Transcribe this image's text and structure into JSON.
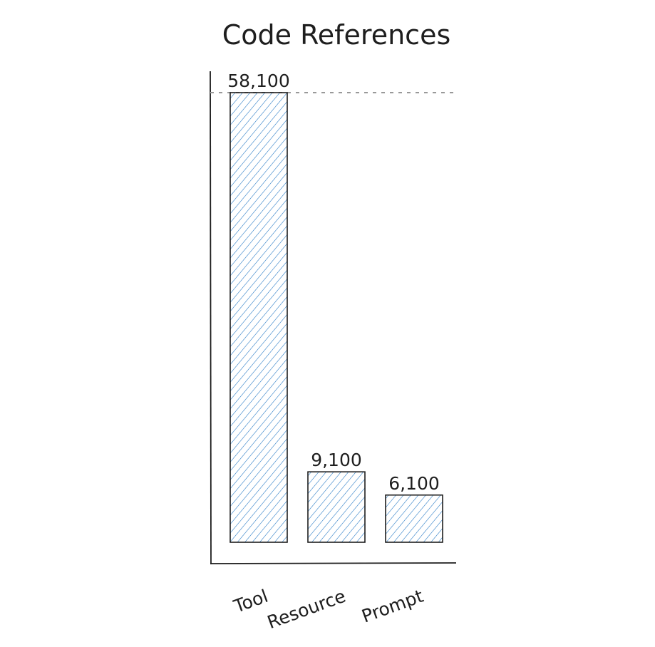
{
  "chart_data": {
    "type": "bar",
    "title": "Code References",
    "categories": [
      "Tool",
      "Resource",
      "Prompt"
    ],
    "values": [
      58100,
      9100,
      6100
    ],
    "data_labels": [
      "58,100",
      "9,100",
      "6,100"
    ],
    "xlabel": "",
    "ylabel": "",
    "ylim": [
      0,
      58100
    ],
    "grid": false,
    "reference_line": 58100,
    "bar_fill": "hachure",
    "colors": {
      "bar_fill": "#1971c2",
      "stroke": "#1e1e1e",
      "reference_line": "#999999"
    }
  }
}
